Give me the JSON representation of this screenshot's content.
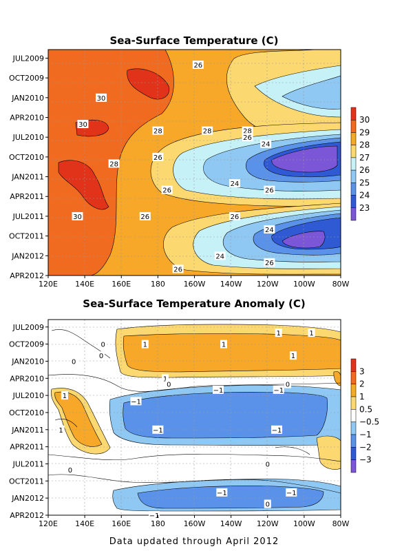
{
  "footer": "Data updated through April 2012",
  "chart_data": [
    {
      "type": "heatmap",
      "title": "Sea-Surface Temperature (C)",
      "x_ticks": [
        "120E",
        "140E",
        "160E",
        "180",
        "160W",
        "140W",
        "120W",
        "100W",
        "80W"
      ],
      "y_ticks": [
        "JUL2009",
        "OCT2009",
        "JAN2010",
        "APR2010",
        "JUL2010",
        "OCT2010",
        "JAN2011",
        "APR2011",
        "JUL2011",
        "OCT2011",
        "JAN2012",
        "APR2012"
      ],
      "colorbar": {
        "labels": [
          "30",
          "29",
          "28",
          "27",
          "26",
          "25",
          "24",
          "23"
        ],
        "colors": [
          "#e1331a",
          "#f06a1f",
          "#f8a828",
          "#fcd970",
          "#c6f1f7",
          "#8fc8f2",
          "#5a92ea",
          "#2f5ad3",
          "#7b57d8"
        ]
      },
      "contour_labels": [
        {
          "text": "26",
          "lon": 202,
          "month": 1
        },
        {
          "text": "30",
          "lon": 149,
          "month": 6
        },
        {
          "text": "30",
          "lon": 139,
          "month": 10
        },
        {
          "text": "28",
          "lon": 180,
          "month": 11
        },
        {
          "text": "28",
          "lon": 207,
          "month": 11
        },
        {
          "text": "28",
          "lon": 229,
          "month": 11
        },
        {
          "text": "26",
          "lon": 229,
          "month": 12
        },
        {
          "text": "24",
          "lon": 239,
          "month": 13
        },
        {
          "text": "26",
          "lon": 180,
          "month": 15
        },
        {
          "text": "28",
          "lon": 156,
          "month": 16
        },
        {
          "text": "24",
          "lon": 222,
          "month": 19
        },
        {
          "text": "26",
          "lon": 185,
          "month": 20
        },
        {
          "text": "26",
          "lon": 241,
          "month": 20
        },
        {
          "text": "30",
          "lon": 136,
          "month": 24
        },
        {
          "text": "26",
          "lon": 173,
          "month": 24
        },
        {
          "text": "26",
          "lon": 222,
          "month": 24
        },
        {
          "text": "24",
          "lon": 241,
          "month": 26
        },
        {
          "text": "24",
          "lon": 214,
          "month": 30
        },
        {
          "text": "26",
          "lon": 241,
          "month": 31
        },
        {
          "text": "26",
          "lon": 191,
          "month": 32
        }
      ]
    },
    {
      "type": "heatmap",
      "title": "Sea-Surface Temperature Anomaly (C)",
      "x_ticks": [
        "120E",
        "140E",
        "160E",
        "180",
        "160W",
        "140W",
        "120W",
        "100W",
        "80W"
      ],
      "y_ticks": [
        "JUL2009",
        "OCT2009",
        "JAN2010",
        "APR2010",
        "JUL2010",
        "OCT2010",
        "JAN2011",
        "APR2011",
        "JUL2011",
        "OCT2011",
        "JAN2012",
        "APR2012"
      ],
      "colorbar": {
        "labels": [
          "3",
          "2",
          "1",
          "0.5",
          "−0.5",
          "−1",
          "−2",
          "−3"
        ],
        "colors": [
          "#e1331a",
          "#f06a1f",
          "#f8a828",
          "#fcd970",
          "#ffffff",
          "#8fc8f2",
          "#5a92ea",
          "#2f5ad3",
          "#7b57d8"
        ]
      },
      "contour_labels": [
        {
          "text": "0",
          "lon": 150,
          "month": 3
        },
        {
          "text": "1",
          "lon": 246,
          "month": 1
        },
        {
          "text": "1",
          "lon": 264,
          "month": 1
        },
        {
          "text": "1",
          "lon": 173,
          "month": 3
        },
        {
          "text": "1",
          "lon": 216,
          "month": 3
        },
        {
          "text": "0",
          "lon": 149,
          "month": 5
        },
        {
          "text": "1",
          "lon": 254,
          "month": 5
        },
        {
          "text": "0",
          "lon": 134,
          "month": 6
        },
        {
          "text": "1",
          "lon": 184,
          "month": 9
        },
        {
          "text": "0",
          "lon": 186,
          "month": 10
        },
        {
          "text": "0",
          "lon": 251,
          "month": 10
        },
        {
          "text": "1",
          "lon": 129,
          "month": 12
        },
        {
          "text": "−1",
          "lon": 213,
          "month": 11
        },
        {
          "text": "−1",
          "lon": 246,
          "month": 11
        },
        {
          "text": "−1",
          "lon": 168,
          "month": 13
        },
        {
          "text": "1",
          "lon": 127,
          "month": 18
        },
        {
          "text": "−1",
          "lon": 180,
          "month": 18
        },
        {
          "text": "−1",
          "lon": 245,
          "month": 18
        },
        {
          "text": "0",
          "lon": 132,
          "month": 25
        },
        {
          "text": "0",
          "lon": 240,
          "month": 24
        },
        {
          "text": "−1",
          "lon": 215,
          "month": 29
        },
        {
          "text": "−1",
          "lon": 253,
          "month": 29
        },
        {
          "text": "0",
          "lon": 240,
          "month": 31
        },
        {
          "text": "−1",
          "lon": 178,
          "month": 33
        }
      ]
    }
  ]
}
